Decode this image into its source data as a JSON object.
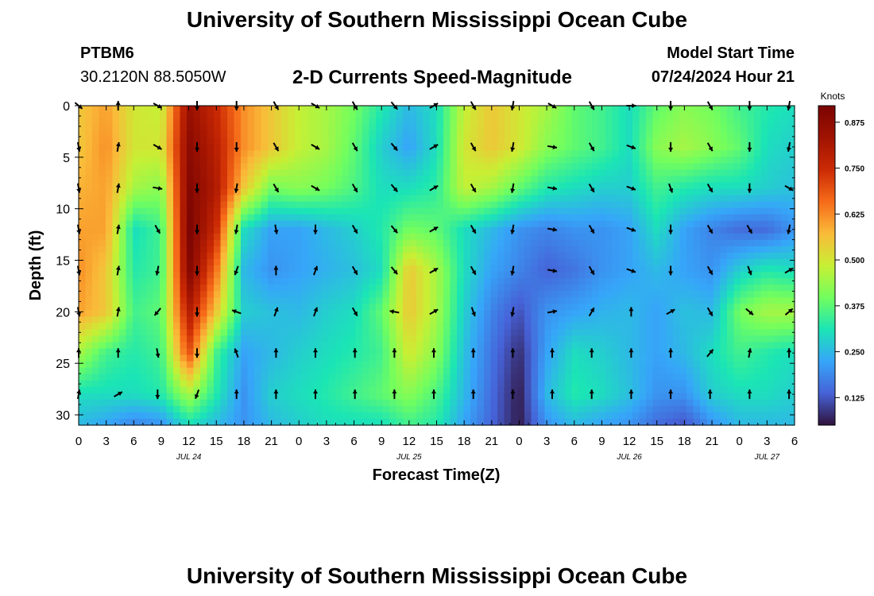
{
  "header": {
    "title": "University of Southern Mississippi Ocean Cube",
    "footer_title": "University of Southern Mississippi Ocean Cube",
    "station_id": "PTBM6",
    "station_coords": "30.2120N  88.5050W",
    "plot_subtitle": "2-D Currents Speed-Magnitude",
    "model_start_label": "Model Start Time",
    "model_start_value": "07/24/2024 Hour 21"
  },
  "chart_data": {
    "type": "heatmap",
    "title": "2-D Currents Speed-Magnitude",
    "xlabel": "Forecast Time(Z)",
    "ylabel": "Depth (ft)",
    "x_hours": [
      0,
      78
    ],
    "ylim": [
      0,
      31
    ],
    "x_ticks": [
      "0",
      "3",
      "6",
      "9",
      "12",
      "15",
      "18",
      "21",
      "0",
      "3",
      "6",
      "9",
      "12",
      "15",
      "18",
      "21",
      "0",
      "3",
      "6",
      "9",
      "12",
      "15",
      "18",
      "21",
      "0",
      "3",
      "6"
    ],
    "y_ticks": [
      "0",
      "5",
      "10",
      "15",
      "20",
      "25",
      "30"
    ],
    "date_labels": [
      {
        "label": "JUL 24",
        "hour": 12
      },
      {
        "label": "JUL 25",
        "hour": 36
      },
      {
        "label": "JUL 26",
        "hour": 60
      },
      {
        "label": "JUL 27",
        "hour": 75
      }
    ],
    "colorbar": {
      "unit": "Knots",
      "min": 0.05,
      "max": 0.92,
      "tick_labels": [
        "0.875",
        "0.750",
        "0.625",
        "0.500",
        "0.375",
        "0.250",
        "0.125"
      ],
      "tick_values": [
        0.875,
        0.75,
        0.625,
        0.5,
        0.375,
        0.25,
        0.125
      ]
    },
    "speed_grid": {
      "depths_ft": [
        0,
        4,
        8,
        12,
        16,
        20,
        24,
        28,
        31
      ],
      "hours": [
        0,
        3,
        6,
        9,
        12,
        15,
        18,
        21,
        24,
        27,
        30,
        33,
        36,
        39,
        42,
        45,
        48,
        51,
        54,
        57,
        60,
        63,
        66,
        69,
        72,
        75,
        78
      ],
      "rows": [
        [
          0.55,
          0.6,
          0.5,
          0.48,
          0.85,
          0.75,
          0.62,
          0.55,
          0.48,
          0.45,
          0.4,
          0.32,
          0.25,
          0.3,
          0.48,
          0.55,
          0.5,
          0.45,
          0.38,
          0.35,
          0.3,
          0.38,
          0.42,
          0.4,
          0.35,
          0.32,
          0.3
        ],
        [
          0.55,
          0.62,
          0.5,
          0.5,
          0.88,
          0.78,
          0.62,
          0.55,
          0.48,
          0.45,
          0.38,
          0.28,
          0.22,
          0.3,
          0.5,
          0.55,
          0.5,
          0.42,
          0.38,
          0.35,
          0.3,
          0.42,
          0.45,
          0.42,
          0.38,
          0.3,
          0.28
        ],
        [
          0.58,
          0.6,
          0.45,
          0.42,
          0.9,
          0.8,
          0.55,
          0.4,
          0.42,
          0.4,
          0.36,
          0.3,
          0.3,
          0.33,
          0.48,
          0.45,
          0.38,
          0.32,
          0.3,
          0.28,
          0.28,
          0.35,
          0.32,
          0.3,
          0.3,
          0.28,
          0.26
        ],
        [
          0.6,
          0.6,
          0.3,
          0.35,
          0.92,
          0.75,
          0.3,
          0.22,
          0.22,
          0.25,
          0.28,
          0.32,
          0.4,
          0.38,
          0.3,
          0.25,
          0.2,
          0.18,
          0.2,
          0.2,
          0.22,
          0.3,
          0.22,
          0.18,
          0.15,
          0.15,
          0.2
        ],
        [
          0.62,
          0.55,
          0.32,
          0.35,
          0.9,
          0.65,
          0.25,
          0.2,
          0.22,
          0.24,
          0.26,
          0.3,
          0.55,
          0.45,
          0.3,
          0.22,
          0.18,
          0.14,
          0.16,
          0.2,
          0.22,
          0.25,
          0.22,
          0.2,
          0.28,
          0.32,
          0.3
        ],
        [
          0.6,
          0.55,
          0.35,
          0.38,
          0.8,
          0.55,
          0.28,
          0.26,
          0.25,
          0.28,
          0.3,
          0.38,
          0.55,
          0.45,
          0.28,
          0.18,
          0.12,
          0.2,
          0.22,
          0.24,
          0.25,
          0.22,
          0.26,
          0.25,
          0.4,
          0.45,
          0.45
        ],
        [
          0.45,
          0.35,
          0.32,
          0.35,
          0.7,
          0.35,
          0.22,
          0.25,
          0.28,
          0.3,
          0.32,
          0.35,
          0.5,
          0.42,
          0.26,
          0.16,
          0.08,
          0.22,
          0.3,
          0.28,
          0.25,
          0.22,
          0.25,
          0.3,
          0.35,
          0.32,
          0.3
        ],
        [
          0.3,
          0.3,
          0.3,
          0.32,
          0.45,
          0.32,
          0.2,
          0.28,
          0.3,
          0.32,
          0.35,
          0.38,
          0.42,
          0.36,
          0.25,
          0.15,
          0.06,
          0.25,
          0.32,
          0.3,
          0.26,
          0.2,
          0.2,
          0.28,
          0.3,
          0.3,
          0.28
        ],
        [
          0.25,
          0.22,
          0.18,
          0.2,
          0.3,
          0.25,
          0.2,
          0.25,
          0.28,
          0.3,
          0.3,
          0.3,
          0.35,
          0.32,
          0.22,
          0.14,
          0.06,
          0.2,
          0.25,
          0.22,
          0.2,
          0.15,
          0.12,
          0.2,
          0.25,
          0.25,
          0.25
        ]
      ]
    },
    "vector_grid": {
      "hours": [
        0,
        4.3,
        8.6,
        12.9,
        17.2,
        21.5,
        25.8,
        30.1,
        34.4,
        38.7,
        43,
        47.3,
        51.6,
        55.9,
        60.2,
        64.5,
        68.8,
        73.1,
        77.4
      ],
      "depths_ft": [
        0,
        4,
        8,
        12,
        16,
        20,
        24,
        28
      ],
      "directions_deg": [
        [
          130,
          0,
          120,
          180,
          180,
          150,
          120,
          150,
          140,
          60,
          150,
          190,
          120,
          150,
          90,
          180,
          150,
          180,
          190
        ],
        [
          170,
          10,
          120,
          180,
          180,
          150,
          120,
          150,
          140,
          60,
          150,
          190,
          100,
          150,
          110,
          180,
          150,
          180,
          190
        ],
        [
          170,
          10,
          100,
          180,
          190,
          150,
          120,
          150,
          140,
          60,
          150,
          190,
          100,
          150,
          110,
          160,
          150,
          180,
          120
        ],
        [
          170,
          10,
          150,
          180,
          190,
          170,
          180,
          150,
          140,
          60,
          150,
          190,
          100,
          150,
          110,
          180,
          150,
          150,
          190
        ],
        [
          170,
          10,
          190,
          180,
          200,
          0,
          20,
          150,
          140,
          60,
          150,
          190,
          100,
          150,
          110,
          180,
          150,
          160,
          60
        ],
        [
          170,
          10,
          220,
          180,
          290,
          20,
          20,
          150,
          280,
          60,
          160,
          190,
          80,
          30,
          0,
          60,
          150,
          130,
          50
        ],
        [
          0,
          0,
          170,
          180,
          340,
          0,
          0,
          0,
          0,
          0,
          0,
          0,
          0,
          0,
          0,
          0,
          40,
          10,
          0
        ],
        [
          10,
          60,
          180,
          200,
          0,
          0,
          0,
          0,
          0,
          0,
          0,
          0,
          0,
          0,
          0,
          0,
          0,
          0,
          0
        ]
      ]
    }
  }
}
